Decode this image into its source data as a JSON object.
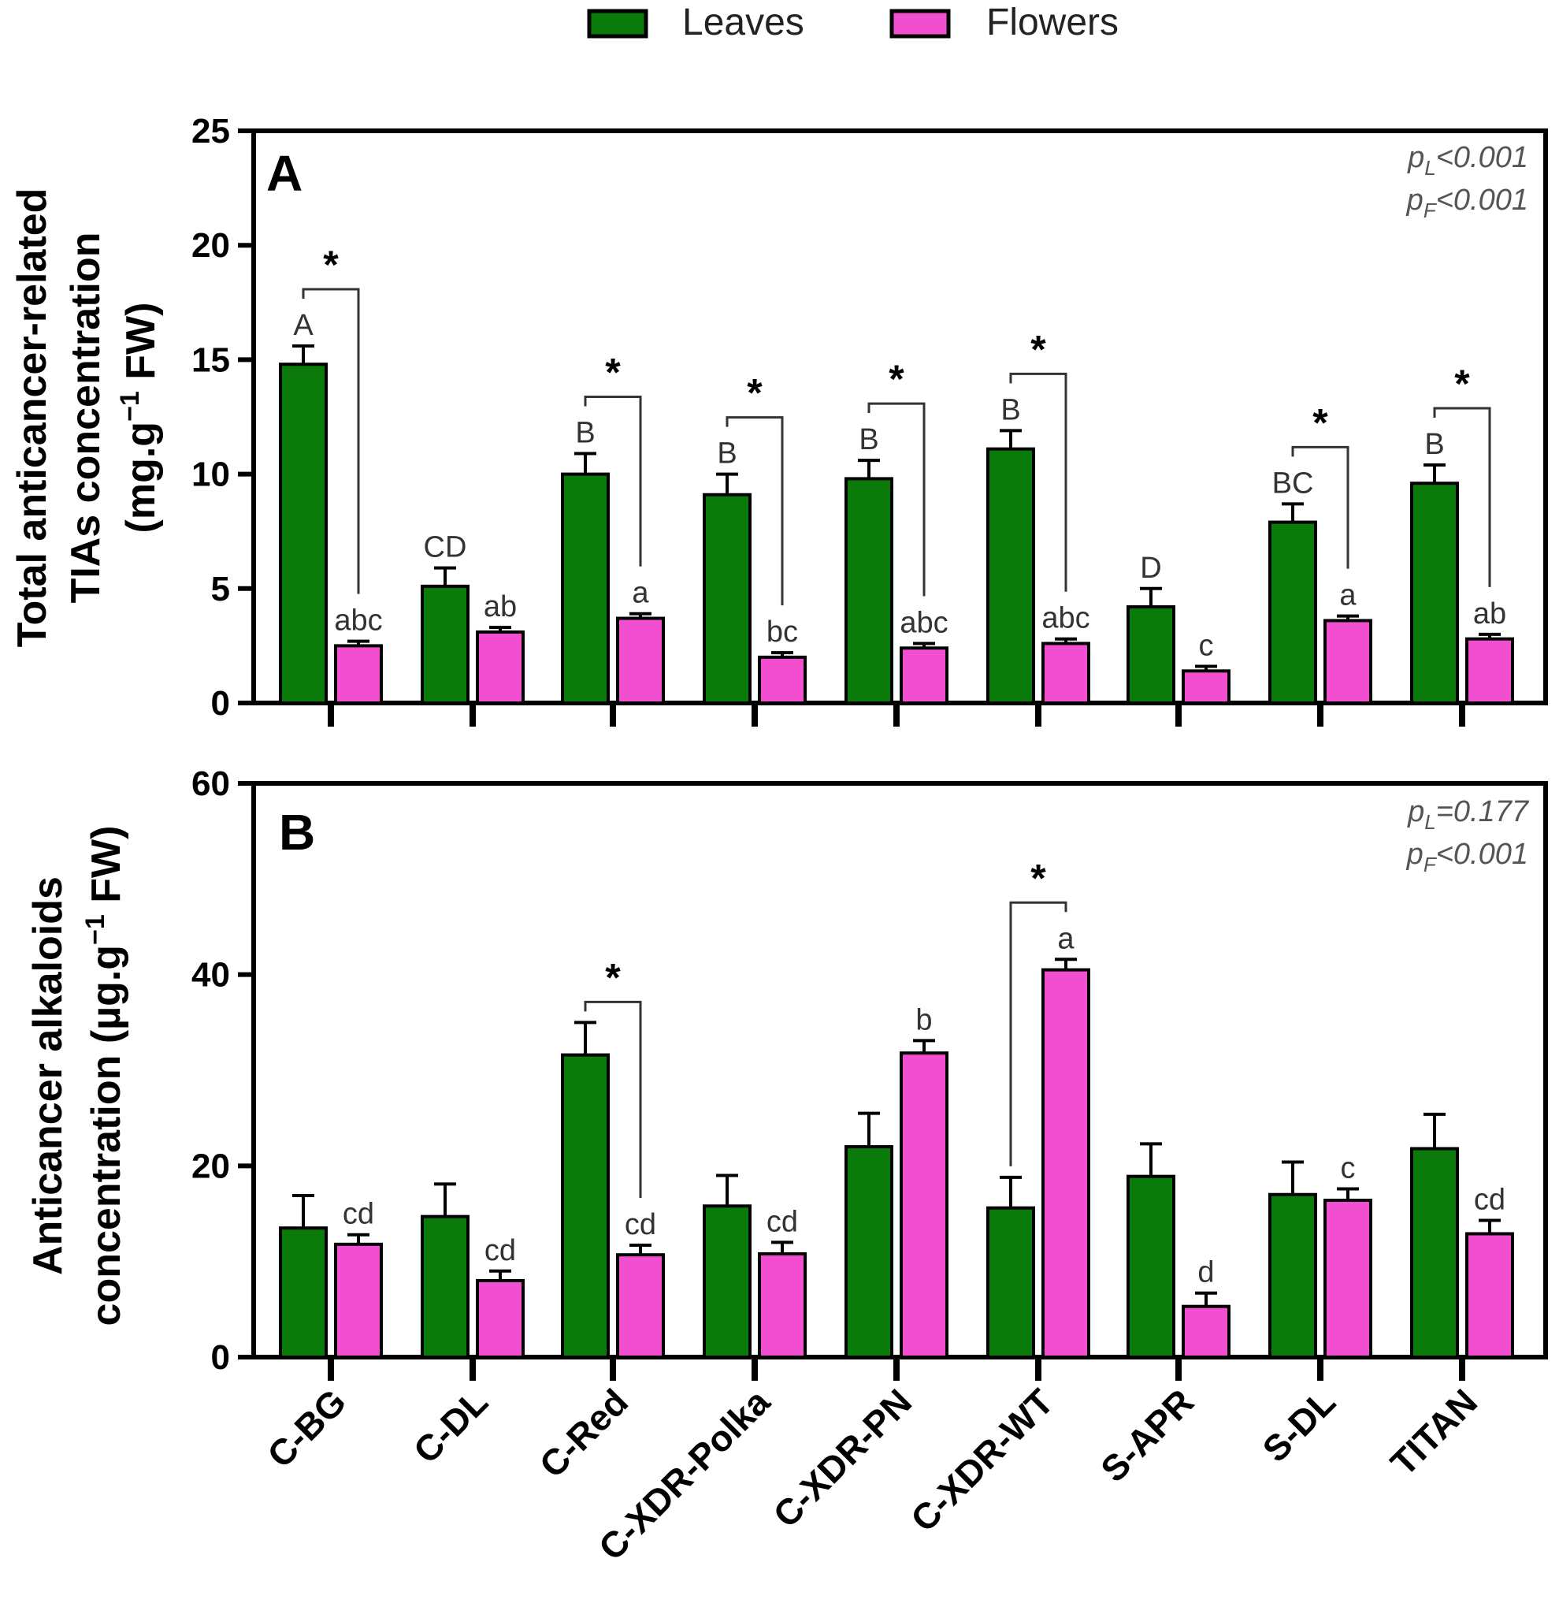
{
  "legend": [
    {
      "label": "Leaves",
      "color": "#0a7a0a"
    },
    {
      "label": "Flowers",
      "color": "#f24fd0"
    }
  ],
  "chart_data": [
    {
      "type": "bar",
      "panel": "A",
      "ylabel_line1": "Total anticancer-related",
      "ylabel_line2": "TIAs concentration",
      "ylabel_line3_pre": "(mg.g",
      "ylabel_line3_sup": "−1",
      "ylabel_line3_post": " FW)",
      "ylim": [
        0,
        25
      ],
      "yticks": [
        "0",
        "5",
        "10",
        "15",
        "20",
        "25"
      ],
      "p_values": {
        "pL": "pL<0.001",
        "pF": "pF<0.001"
      },
      "categories": [
        "C-BG",
        "C-DL",
        "C-Red",
        "C-XDR-Polka",
        "C-XDR-PN",
        "C-XDR-WT",
        "S-APR",
        "S-DL",
        "TITAN"
      ],
      "series": [
        {
          "name": "Leaves",
          "values": [
            14.8,
            5.1,
            10.0,
            9.1,
            9.8,
            11.1,
            4.2,
            7.9,
            9.6
          ],
          "errors": [
            0.8,
            0.8,
            0.9,
            0.9,
            0.8,
            0.8,
            0.8,
            0.8,
            0.8
          ],
          "letters": [
            "A",
            "CD",
            "B",
            "B",
            "B",
            "B",
            "D",
            "BC",
            "B"
          ]
        },
        {
          "name": "Flowers",
          "values": [
            2.5,
            3.1,
            3.7,
            2.0,
            2.4,
            2.6,
            1.4,
            3.6,
            2.8
          ],
          "errors": [
            0.2,
            0.2,
            0.2,
            0.2,
            0.2,
            0.2,
            0.2,
            0.2,
            0.2
          ],
          "letters": [
            "abc",
            "ab",
            "a",
            "bc",
            "abc",
            "abc",
            "c",
            "a",
            "ab"
          ]
        }
      ],
      "significance": [
        true,
        false,
        true,
        true,
        true,
        true,
        false,
        true,
        true
      ],
      "star": "*"
    },
    {
      "type": "bar",
      "panel": "B",
      "ylabel_line1": "Anticancer alkaloids",
      "ylabel_line2_pre": "concentration (µg.g",
      "ylabel_line2_sup": "−1",
      "ylabel_line2_post": " FW)",
      "ylim": [
        0,
        60
      ],
      "yticks": [
        "0",
        "20",
        "40",
        "60"
      ],
      "p_values": {
        "pL": "pL=0.177",
        "pF": "pF<0.001"
      },
      "categories": [
        "C-BG",
        "C-DL",
        "C-Red",
        "C-XDR-Polka",
        "C-XDR-PN",
        "C-XDR-WT",
        "S-APR",
        "S-DL",
        "TITAN"
      ],
      "series": [
        {
          "name": "Leaves",
          "values": [
            13.5,
            14.7,
            31.6,
            15.8,
            22.0,
            15.6,
            18.9,
            17.0,
            21.8
          ],
          "errors": [
            3.4,
            3.4,
            3.4,
            3.2,
            3.5,
            3.2,
            3.4,
            3.4,
            3.6
          ],
          "letters": [
            "",
            "",
            "",
            "",
            "",
            "",
            "",
            "",
            ""
          ]
        },
        {
          "name": "Flowers",
          "values": [
            11.8,
            8.0,
            10.7,
            10.8,
            31.8,
            40.5,
            5.3,
            16.4,
            12.9
          ],
          "errors": [
            1.0,
            1.0,
            1.0,
            1.2,
            1.3,
            1.1,
            1.4,
            1.2,
            1.4
          ],
          "letters": [
            "cd",
            "cd",
            "cd",
            "cd",
            "b",
            "a",
            "d",
            "c",
            "cd"
          ]
        }
      ],
      "significance": [
        false,
        false,
        true,
        false,
        false,
        true,
        false,
        false,
        false
      ],
      "star": "*"
    }
  ]
}
